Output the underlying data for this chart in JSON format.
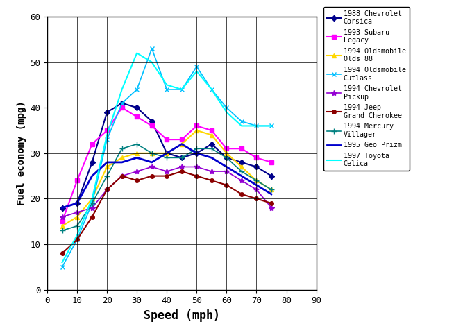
{
  "title": "",
  "xlabel": "Speed (mph)",
  "ylabel": "Fuel economy (mpg)",
  "xlim": [
    0,
    90
  ],
  "ylim": [
    0,
    60
  ],
  "xticks": [
    0,
    10,
    20,
    30,
    40,
    50,
    60,
    70,
    80,
    90
  ],
  "yticks": [
    0,
    10,
    20,
    30,
    40,
    50,
    60
  ],
  "figsize": [
    6.8,
    4.8
  ],
  "dpi": 100,
  "series": [
    {
      "label": "1988 Chevrolet\nCorsica",
      "color": "#00008B",
      "marker": "D",
      "markersize": 4,
      "linewidth": 1.5,
      "x": [
        5,
        10,
        15,
        20,
        25,
        30,
        35,
        40,
        45,
        50,
        55,
        60,
        65,
        70,
        75
      ],
      "y": [
        18,
        19,
        28,
        39,
        41,
        40,
        37,
        30,
        29,
        30,
        32,
        29,
        28,
        27,
        25
      ]
    },
    {
      "label": "1993 Subaru\nLegacy",
      "color": "#FF00FF",
      "marker": "s",
      "markersize": 5,
      "linewidth": 1.5,
      "x": [
        5,
        10,
        15,
        20,
        25,
        30,
        35,
        40,
        45,
        50,
        55,
        60,
        65,
        70,
        75
      ],
      "y": [
        15,
        24,
        32,
        35,
        40,
        38,
        36,
        33,
        33,
        36,
        35,
        31,
        31,
        29,
        28
      ]
    },
    {
      "label": "1994 Oldsmobile\nOlds 88",
      "color": "#FFD700",
      "marker": "^",
      "markersize": 5,
      "linewidth": 1.5,
      "x": [
        5,
        10,
        15,
        20,
        25,
        30,
        35,
        40,
        45,
        50,
        55,
        60,
        65,
        70,
        75
      ],
      "y": [
        14,
        16,
        20,
        27,
        29,
        30,
        30,
        30,
        32,
        35,
        34,
        30,
        27,
        24,
        22
      ]
    },
    {
      "label": "1994 Oldsmobile\nCutlass",
      "color": "#00BFFF",
      "marker": "x",
      "markersize": 5,
      "linewidth": 1.2,
      "x": [
        5,
        10,
        15,
        20,
        25,
        30,
        35,
        40,
        45,
        50,
        55,
        60,
        65,
        70,
        75
      ],
      "y": [
        5,
        11,
        19,
        33,
        41,
        44,
        53,
        44,
        44,
        49,
        44,
        40,
        37,
        36,
        36
      ]
    },
    {
      "label": "1994 Chevrolet\nPickup",
      "color": "#9400D3",
      "marker": "*",
      "markersize": 6,
      "linewidth": 1.2,
      "x": [
        5,
        10,
        15,
        20,
        25,
        30,
        35,
        40,
        45,
        50,
        55,
        60,
        65,
        70,
        75
      ],
      "y": [
        16,
        17,
        18,
        22,
        25,
        26,
        27,
        26,
        27,
        27,
        26,
        26,
        24,
        22,
        18
      ]
    },
    {
      "label": "1994 Jeep\nGrand Cherokee",
      "color": "#8B0000",
      "marker": "o",
      "markersize": 4,
      "linewidth": 1.5,
      "x": [
        5,
        10,
        15,
        20,
        25,
        30,
        35,
        40,
        45,
        50,
        55,
        60,
        65,
        70,
        75
      ],
      "y": [
        8,
        11,
        16,
        22,
        25,
        24,
        25,
        25,
        26,
        25,
        24,
        23,
        21,
        20,
        19
      ]
    },
    {
      "label": "1994 Mercury\nVillager",
      "color": "#008080",
      "marker": "+",
      "markersize": 6,
      "linewidth": 1.2,
      "x": [
        5,
        10,
        15,
        20,
        25,
        30,
        35,
        40,
        45,
        50,
        55,
        60,
        65,
        70,
        75
      ],
      "y": [
        13,
        14,
        19,
        25,
        31,
        32,
        30,
        29,
        29,
        31,
        31,
        29,
        26,
        24,
        22
      ]
    },
    {
      "label": "1995 Geo Prizm",
      "color": "#0000CD",
      "marker": "None",
      "markersize": 0,
      "linewidth": 2.0,
      "x": [
        5,
        10,
        15,
        20,
        25,
        30,
        35,
        40,
        45,
        50,
        55,
        60,
        65,
        70,
        75
      ],
      "y": [
        18,
        19,
        25,
        28,
        28,
        29,
        28,
        30,
        32,
        30,
        29,
        27,
        25,
        23,
        21
      ]
    },
    {
      "label": "1997 Toyota\nCelica",
      "color": "#00FFFF",
      "marker": "None",
      "markersize": 0,
      "linewidth": 1.5,
      "x": [
        5,
        10,
        15,
        20,
        25,
        30,
        35,
        40,
        45,
        50,
        55,
        60,
        65,
        70,
        75
      ],
      "y": [
        6,
        12,
        20,
        34,
        44,
        52,
        50,
        45,
        44,
        48,
        44,
        39,
        36,
        36,
        36
      ]
    }
  ]
}
